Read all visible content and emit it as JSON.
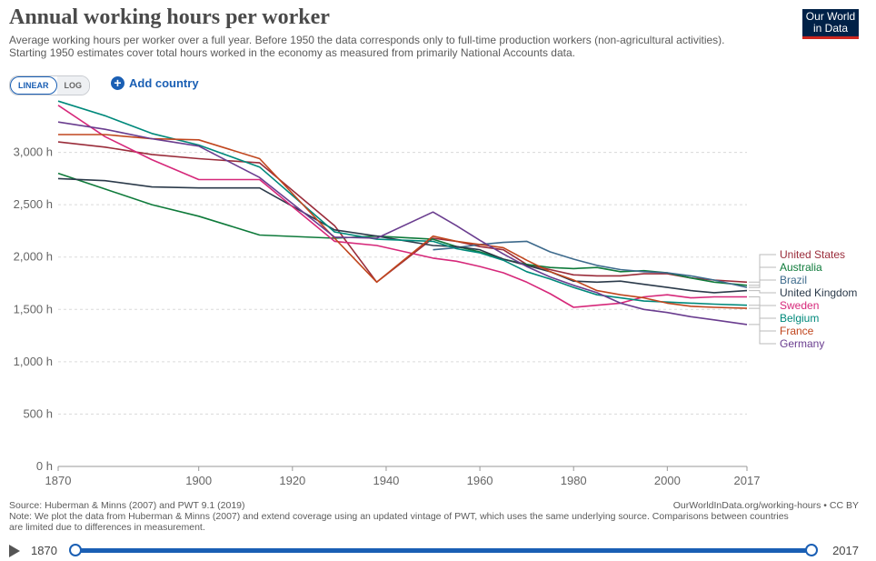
{
  "header": {
    "title": "Annual working hours per worker",
    "subtitle_line1": "Average working hours per worker over a full year. Before 1950 the data corresponds only to full-time production workers (non-agricultural activities).",
    "subtitle_line2": "Starting 1950 estimates cover total hours worked in the economy as measured from primarily National Accounts data.",
    "logo_line1": "Our World",
    "logo_line2": "in Data"
  },
  "controls": {
    "linear_label": "LINEAR",
    "log_label": "LOG",
    "add_country_label": "Add country"
  },
  "footer": {
    "source": "Source: Huberman & Minns (2007) and PWT 9.1 (2019)",
    "note_line1": "Note: We plot the data from Huberman & Minns (2007) and extend coverage using an updated vintage of PWT, which uses the same underlying source. Comparisons between countries",
    "note_line2": "are limited due to differences in measurement.",
    "url": "OurWorldInData.org/working-hours • CC BY"
  },
  "timeline": {
    "start_label": "1870",
    "end_label": "2017"
  },
  "colors": {
    "United States": "#9a2c3a",
    "Australia": "#0e7a3a",
    "Brazil": "#3d6a8c",
    "United Kingdom": "#2b3a4a",
    "Sweden": "#d6287a",
    "Belgium": "#00897b",
    "France": "#c0461e",
    "Germany": "#6a3d8f"
  },
  "chart_data": {
    "type": "line",
    "title": "Annual working hours per worker",
    "xlim": [
      1870,
      2017
    ],
    "ylim": [
      0,
      3500
    ],
    "y_ticks": [
      0,
      500,
      1000,
      1500,
      2000,
      2500,
      3000
    ],
    "y_tick_labels": [
      "0 h",
      "500 h",
      "1,000 h",
      "1,500 h",
      "2,000 h",
      "2,500 h",
      "3,000 h"
    ],
    "x_ticks": [
      1870,
      1900,
      1920,
      1940,
      1960,
      1980,
      2000,
      2017
    ],
    "x_tick_labels": [
      "1870",
      "1900",
      "1920",
      "1940",
      "1960",
      "1980",
      "2000",
      "2017"
    ],
    "grid": true,
    "legend": "right",
    "series": [
      {
        "name": "United States",
        "points": [
          [
            1870,
            3100
          ],
          [
            1880,
            3050
          ],
          [
            1890,
            2980
          ],
          [
            1900,
            2940
          ],
          [
            1913,
            2900
          ],
          [
            1929,
            2300
          ],
          [
            1938,
            1760
          ],
          [
            1950,
            2180
          ],
          [
            1955,
            2150
          ],
          [
            1960,
            2100
          ],
          [
            1965,
            2070
          ],
          [
            1970,
            1930
          ],
          [
            1975,
            1880
          ],
          [
            1980,
            1830
          ],
          [
            1985,
            1820
          ],
          [
            1990,
            1820
          ],
          [
            1995,
            1840
          ],
          [
            2000,
            1840
          ],
          [
            2005,
            1800
          ],
          [
            2010,
            1780
          ],
          [
            2017,
            1760
          ]
        ]
      },
      {
        "name": "Australia",
        "points": [
          [
            1870,
            2800
          ],
          [
            1880,
            2650
          ],
          [
            1890,
            2500
          ],
          [
            1900,
            2390
          ],
          [
            1913,
            2210
          ],
          [
            1929,
            2180
          ],
          [
            1938,
            2200
          ],
          [
            1950,
            2170
          ],
          [
            1955,
            2100
          ],
          [
            1960,
            2050
          ],
          [
            1965,
            1980
          ],
          [
            1970,
            1930
          ],
          [
            1975,
            1900
          ],
          [
            1980,
            1890
          ],
          [
            1985,
            1900
          ],
          [
            1990,
            1860
          ],
          [
            1995,
            1870
          ],
          [
            2000,
            1850
          ],
          [
            2005,
            1800
          ],
          [
            2010,
            1760
          ],
          [
            2017,
            1730
          ]
        ]
      },
      {
        "name": "Brazil",
        "points": [
          [
            1950,
            2070
          ],
          [
            1955,
            2090
          ],
          [
            1960,
            2120
          ],
          [
            1965,
            2140
          ],
          [
            1970,
            2150
          ],
          [
            1975,
            2050
          ],
          [
            1980,
            1980
          ],
          [
            1985,
            1920
          ],
          [
            1990,
            1880
          ],
          [
            1995,
            1860
          ],
          [
            2000,
            1850
          ],
          [
            2005,
            1820
          ],
          [
            2010,
            1780
          ],
          [
            2017,
            1710
          ]
        ]
      },
      {
        "name": "United Kingdom",
        "points": [
          [
            1870,
            2750
          ],
          [
            1880,
            2730
          ],
          [
            1890,
            2670
          ],
          [
            1900,
            2660
          ],
          [
            1913,
            2660
          ],
          [
            1929,
            2260
          ],
          [
            1938,
            2200
          ],
          [
            1950,
            2110
          ],
          [
            1955,
            2100
          ],
          [
            1960,
            2070
          ],
          [
            1965,
            1980
          ],
          [
            1970,
            1920
          ],
          [
            1975,
            1860
          ],
          [
            1980,
            1770
          ],
          [
            1985,
            1760
          ],
          [
            1990,
            1770
          ],
          [
            1995,
            1740
          ],
          [
            2000,
            1710
          ],
          [
            2005,
            1680
          ],
          [
            2010,
            1660
          ],
          [
            2017,
            1680
          ]
        ]
      },
      {
        "name": "Sweden",
        "points": [
          [
            1870,
            3450
          ],
          [
            1880,
            3150
          ],
          [
            1890,
            2930
          ],
          [
            1900,
            2740
          ],
          [
            1913,
            2740
          ],
          [
            1929,
            2150
          ],
          [
            1938,
            2110
          ],
          [
            1950,
            1990
          ],
          [
            1955,
            1960
          ],
          [
            1960,
            1910
          ],
          [
            1965,
            1850
          ],
          [
            1970,
            1760
          ],
          [
            1975,
            1650
          ],
          [
            1980,
            1520
          ],
          [
            1985,
            1540
          ],
          [
            1990,
            1560
          ],
          [
            1995,
            1620
          ],
          [
            2000,
            1640
          ],
          [
            2005,
            1610
          ],
          [
            2010,
            1620
          ],
          [
            2017,
            1620
          ]
        ]
      },
      {
        "name": "Belgium",
        "points": [
          [
            1870,
            3490
          ],
          [
            1880,
            3350
          ],
          [
            1890,
            3180
          ],
          [
            1900,
            3070
          ],
          [
            1913,
            2860
          ],
          [
            1929,
            2240
          ],
          [
            1938,
            2170
          ],
          [
            1950,
            2150
          ],
          [
            1955,
            2080
          ],
          [
            1960,
            2040
          ],
          [
            1965,
            1970
          ],
          [
            1970,
            1860
          ],
          [
            1975,
            1790
          ],
          [
            1980,
            1710
          ],
          [
            1985,
            1640
          ],
          [
            1990,
            1610
          ],
          [
            1995,
            1580
          ],
          [
            2000,
            1570
          ],
          [
            2005,
            1560
          ],
          [
            2010,
            1550
          ],
          [
            2017,
            1540
          ]
        ]
      },
      {
        "name": "France",
        "points": [
          [
            1870,
            3170
          ],
          [
            1880,
            3170
          ],
          [
            1890,
            3130
          ],
          [
            1900,
            3120
          ],
          [
            1913,
            2940
          ],
          [
            1929,
            2180
          ],
          [
            1938,
            1760
          ],
          [
            1950,
            2200
          ],
          [
            1955,
            2150
          ],
          [
            1960,
            2120
          ],
          [
            1965,
            2090
          ],
          [
            1970,
            1970
          ],
          [
            1975,
            1860
          ],
          [
            1980,
            1780
          ],
          [
            1985,
            1680
          ],
          [
            1990,
            1640
          ],
          [
            1995,
            1610
          ],
          [
            2000,
            1560
          ],
          [
            2005,
            1530
          ],
          [
            2010,
            1520
          ],
          [
            2017,
            1510
          ]
        ]
      },
      {
        "name": "Germany",
        "points": [
          [
            1870,
            3290
          ],
          [
            1880,
            3220
          ],
          [
            1890,
            3130
          ],
          [
            1900,
            3060
          ],
          [
            1913,
            2760
          ],
          [
            1929,
            2190
          ],
          [
            1938,
            2180
          ],
          [
            1950,
            2430
          ],
          [
            1955,
            2300
          ],
          [
            1960,
            2160
          ],
          [
            1965,
            2030
          ],
          [
            1970,
            1910
          ],
          [
            1975,
            1810
          ],
          [
            1980,
            1730
          ],
          [
            1985,
            1660
          ],
          [
            1990,
            1560
          ],
          [
            1995,
            1500
          ],
          [
            2000,
            1470
          ],
          [
            2005,
            1430
          ],
          [
            2010,
            1400
          ],
          [
            2017,
            1356
          ]
        ]
      }
    ]
  }
}
